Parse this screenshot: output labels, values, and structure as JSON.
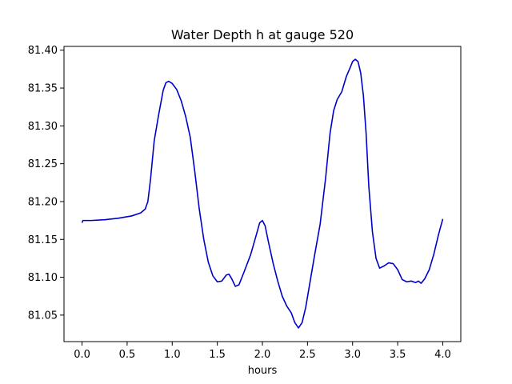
{
  "chart_data": {
    "type": "line",
    "title": "Water Depth h at gauge 520",
    "xlabel": "hours",
    "ylabel": "",
    "xlim": [
      -0.2,
      4.2
    ],
    "ylim": [
      81.015,
      81.405
    ],
    "xticks": [
      0.0,
      0.5,
      1.0,
      1.5,
      2.0,
      2.5,
      3.0,
      3.5,
      4.0
    ],
    "xtick_labels": [
      "0.0",
      "0.5",
      "1.0",
      "1.5",
      "2.0",
      "2.5",
      "3.0",
      "3.5",
      "4.0"
    ],
    "yticks": [
      81.05,
      81.1,
      81.15,
      81.2,
      81.25,
      81.3,
      81.35,
      81.4
    ],
    "ytick_labels": [
      "81.05",
      "81.10",
      "81.15",
      "81.20",
      "81.25",
      "81.30",
      "81.35",
      "81.40"
    ],
    "grid": false,
    "series": [
      {
        "color": "#0000cc",
        "x": [
          0.0,
          0.01,
          0.1,
          0.25,
          0.4,
          0.55,
          0.65,
          0.7,
          0.73,
          0.76,
          0.8,
          0.85,
          0.9,
          0.93,
          0.96,
          1.0,
          1.05,
          1.1,
          1.15,
          1.2,
          1.25,
          1.3,
          1.35,
          1.4,
          1.45,
          1.5,
          1.55,
          1.6,
          1.63,
          1.66,
          1.7,
          1.74,
          1.8,
          1.87,
          1.93,
          1.97,
          2.0,
          2.03,
          2.07,
          2.12,
          2.17,
          2.22,
          2.27,
          2.32,
          2.36,
          2.4,
          2.44,
          2.48,
          2.53,
          2.58,
          2.64,
          2.7,
          2.75,
          2.79,
          2.83,
          2.88,
          2.93,
          2.97,
          3.0,
          3.03,
          3.06,
          3.09,
          3.12,
          3.15,
          3.18,
          3.22,
          3.26,
          3.3,
          3.35,
          3.4,
          3.45,
          3.5,
          3.55,
          3.6,
          3.65,
          3.7,
          3.73,
          3.76,
          3.8,
          3.85,
          3.9,
          3.95,
          4.0
        ],
        "y": [
          81.172,
          81.175,
          81.175,
          81.176,
          81.178,
          81.181,
          81.185,
          81.19,
          81.2,
          81.23,
          81.28,
          81.315,
          81.347,
          81.357,
          81.359,
          81.356,
          81.348,
          81.333,
          81.312,
          81.285,
          81.24,
          81.19,
          81.15,
          81.12,
          81.102,
          81.094,
          81.095,
          81.103,
          81.104,
          81.098,
          81.088,
          81.09,
          81.108,
          81.13,
          81.155,
          81.172,
          81.175,
          81.168,
          81.145,
          81.118,
          81.095,
          81.075,
          81.062,
          81.053,
          81.04,
          81.033,
          81.04,
          81.06,
          81.095,
          81.13,
          81.17,
          81.23,
          81.29,
          81.32,
          81.335,
          81.345,
          81.365,
          81.376,
          81.385,
          81.388,
          81.385,
          81.37,
          81.34,
          81.29,
          81.22,
          81.16,
          81.125,
          81.112,
          81.115,
          81.119,
          81.118,
          81.11,
          81.097,
          81.094,
          81.095,
          81.093,
          81.095,
          81.092,
          81.098,
          81.11,
          81.13,
          81.155,
          81.177
        ]
      }
    ]
  }
}
